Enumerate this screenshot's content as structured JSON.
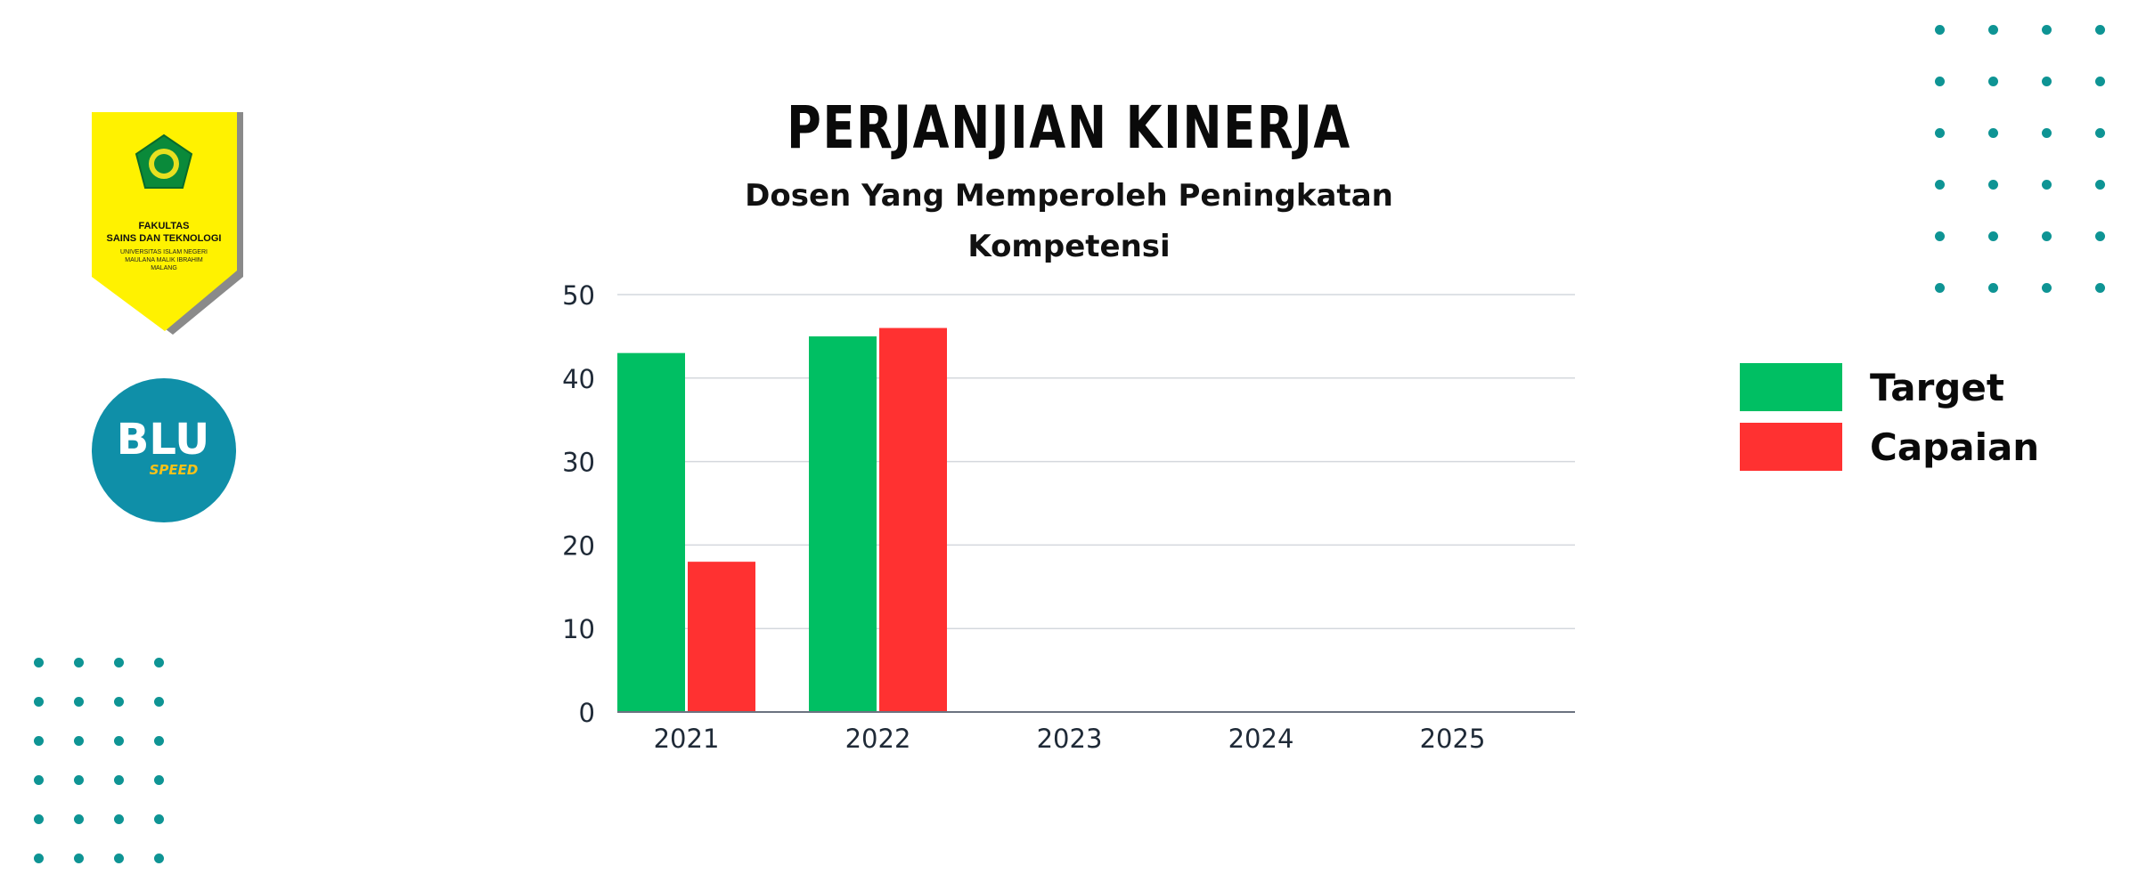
{
  "logos": {
    "faculty": {
      "line1": "FAKULTAS",
      "line2": "SAINS DAN TEKNOLOGI",
      "line3": "UNIVERSITAS ISLAM NEGERI",
      "line4": "MAULANA MALIK IBRAHIM",
      "line5": "MALANG"
    },
    "blu": {
      "text": "BLU",
      "subtext": "SPEED"
    }
  },
  "colors": {
    "target": "#00bf63",
    "capaian": "#ff3131",
    "dots": "#0e9494",
    "grid": "#d4d8dd",
    "axis": "#6b7280",
    "tick_text": "#1f2a37"
  },
  "chart_data": {
    "type": "bar",
    "title": "PERJANJIAN KINERJA",
    "subtitle": "Dosen Yang Memperoleh Peningkatan Kompetensi",
    "categories": [
      "2021",
      "2022",
      "2023",
      "2024",
      "2025"
    ],
    "series": [
      {
        "name": "Target",
        "values": [
          43,
          45,
          null,
          null,
          null
        ]
      },
      {
        "name": "Capaian",
        "values": [
          18,
          46,
          null,
          null,
          null
        ]
      }
    ],
    "ylim": [
      0,
      50
    ],
    "yticks": [
      0,
      10,
      20,
      30,
      40,
      50
    ],
    "grid": true,
    "legend_position": "right"
  }
}
